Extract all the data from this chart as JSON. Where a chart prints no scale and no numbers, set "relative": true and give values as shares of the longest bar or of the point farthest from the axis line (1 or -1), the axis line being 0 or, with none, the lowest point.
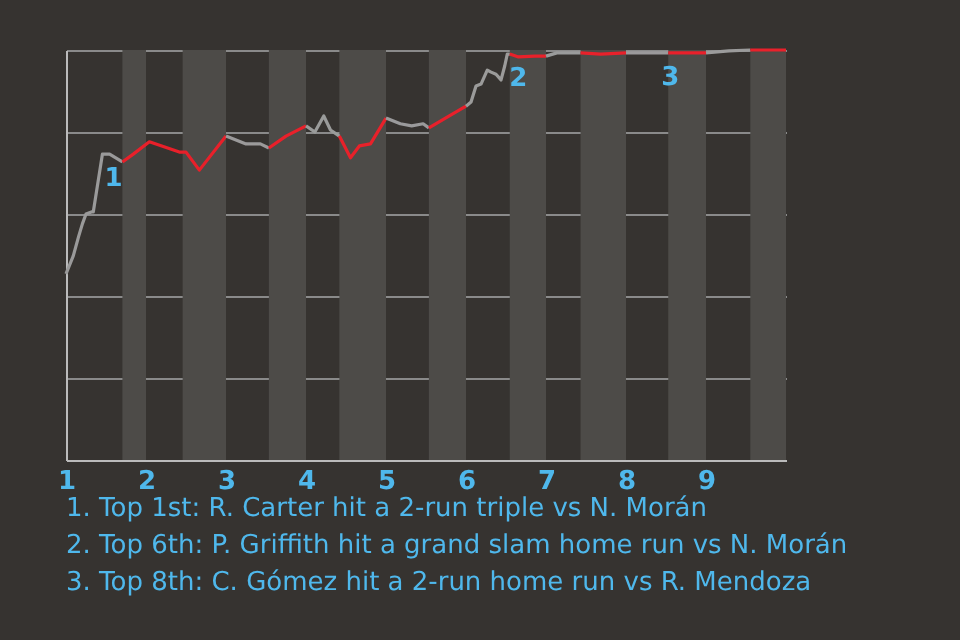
{
  "chart_data": {
    "type": "line",
    "relative": true,
    "xlim": [
      1,
      10
    ],
    "xticks": [
      1,
      2,
      3,
      4,
      5,
      6,
      7,
      8,
      9
    ],
    "grid": "y",
    "line_style": "solid",
    "marker": "none",
    "bands": [
      {
        "axis": "x",
        "from": 1.705,
        "to": 2,
        "color": "#4d4b48"
      },
      {
        "axis": "x",
        "from": 2.458,
        "to": 3,
        "color": "#4d4b48"
      },
      {
        "axis": "x",
        "from": 3.536,
        "to": 4,
        "color": "#4d4b48"
      },
      {
        "axis": "x",
        "from": 4.417,
        "to": 5,
        "color": "#4d4b48"
      },
      {
        "axis": "x",
        "from": 5.536,
        "to": 6,
        "color": "#4d4b48"
      },
      {
        "axis": "x",
        "from": 6.547,
        "to": 7,
        "color": "#4d4b48"
      },
      {
        "axis": "x",
        "from": 7.432,
        "to": 8,
        "color": "#4d4b48"
      },
      {
        "axis": "x",
        "from": 8.528,
        "to": 9,
        "color": "#4d4b48"
      },
      {
        "axis": "x",
        "from": 9.554,
        "to": 10,
        "color": "#4d4b48"
      }
    ],
    "series": [
      {
        "color": "#9a9a9a",
        "x": [
          1.0,
          1.091,
          1.159,
          1.205,
          1.25,
          1.318,
          1.341,
          1.455,
          1.545,
          1.705
        ],
        "values": [
          0.454,
          0.498,
          0.546,
          0.576,
          0.6,
          0.605,
          0.605,
          0.746,
          0.746,
          0.727
        ]
      },
      {
        "color": "#e8202a",
        "x": [
          1.705,
          1.841,
          2.042,
          2.417,
          2.5,
          2.667,
          3.0
        ],
        "values": [
          0.727,
          0.746,
          0.776,
          0.751,
          0.751,
          0.707,
          0.79
        ]
      },
      {
        "color": "#9b9a9a",
        "x": [
          3.0,
          3.25,
          3.429,
          3.536
        ],
        "values": [
          0.79,
          0.771,
          0.771,
          0.761
        ]
      },
      {
        "color": "#e9202a",
        "x": [
          3.536,
          3.75,
          4.0
        ],
        "values": [
          0.761,
          0.79,
          0.815
        ]
      },
      {
        "color": "#9a9b9a",
        "x": [
          4.0,
          4.111,
          4.222,
          4.306,
          4.417
        ],
        "values": [
          0.815,
          0.8,
          0.839,
          0.805,
          0.79
        ]
      },
      {
        "color": "#e8212a",
        "x": [
          4.417,
          4.556,
          4.667,
          4.806,
          5.0
        ],
        "values": [
          0.79,
          0.737,
          0.766,
          0.771,
          0.834
        ]
      },
      {
        "color": "#9a9a9b",
        "x": [
          5.0,
          5.179,
          5.321,
          5.464,
          5.536
        ],
        "values": [
          0.834,
          0.82,
          0.815,
          0.82,
          0.81
        ]
      },
      {
        "color": "#e8202b",
        "x": [
          5.536,
          5.786,
          6.0
        ],
        "values": [
          0.81,
          0.839,
          0.863
        ]
      },
      {
        "color": "#9b9b9a",
        "x": [
          6.0,
          6.063,
          6.125,
          6.188,
          6.266,
          6.313,
          6.375,
          6.438,
          6.484,
          6.516,
          6.547
        ],
        "values": [
          0.863,
          0.873,
          0.912,
          0.917,
          0.951,
          0.946,
          0.941,
          0.927,
          0.961,
          0.99,
          0.99
        ]
      },
      {
        "color": "#e9212a",
        "x": [
          6.547,
          6.656,
          6.859,
          7.0
        ],
        "values": [
          0.99,
          0.983,
          0.985,
          0.985
        ]
      },
      {
        "color": "#9a9b9b",
        "x": [
          7.0,
          7.136,
          7.432
        ],
        "values": [
          0.985,
          0.993,
          0.993
        ]
      },
      {
        "color": "#e8212b",
        "x": [
          7.432,
          7.682,
          8.0
        ],
        "values": [
          0.993,
          0.99,
          0.993
        ]
      },
      {
        "color": "#9b9a9b",
        "x": [
          8.0,
          8.528
        ],
        "values": [
          0.993,
          0.993
        ]
      },
      {
        "color": "#e9202b",
        "x": [
          8.528,
          9.0
        ],
        "values": [
          0.993,
          0.993
        ]
      },
      {
        "color": "#9b9b9b",
        "x": [
          9.0,
          9.286,
          9.554
        ],
        "values": [
          0.993,
          0.998,
          1.0
        ]
      },
      {
        "color": "#e9212b",
        "x": [
          9.554,
          10.0
        ],
        "values": [
          1.0,
          1.0
        ]
      }
    ],
    "annotations": [
      {
        "text": "1",
        "x": 1.455,
        "y": 0.746
      },
      {
        "text": "2",
        "x": 6.516,
        "y": 0.99
      },
      {
        "text": "3",
        "x": 8.417,
        "y": 0.993
      },
      "1. Top 1st: R. Carter hit a 2-run triple vs N. Morán",
      "2. Top 6th: P. Griffith hit a grand slam home run vs N. Morán",
      "3. Top 8th: C. Gómez hit a 2-run home run vs R. Mendoza"
    ]
  }
}
